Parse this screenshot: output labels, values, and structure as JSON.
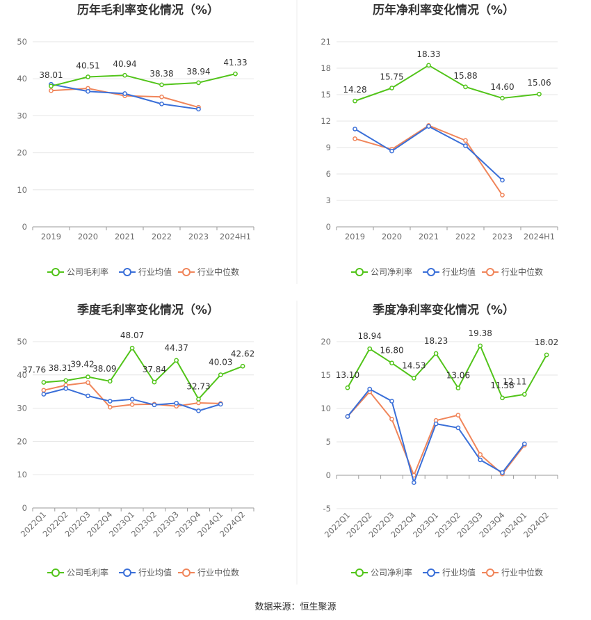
{
  "source": "数据来源：恒生聚源",
  "legend_colors": {
    "company": "#52c41a",
    "avg": "#3a6fd8",
    "median": "#f0855a"
  },
  "chart_data": [
    {
      "type": "line",
      "title": "历年毛利率变化情况（%）",
      "categories": [
        "2019",
        "2020",
        "2021",
        "2022",
        "2023",
        "2024H1"
      ],
      "ylim": [
        0,
        50
      ],
      "yticks": [
        0,
        10,
        20,
        30,
        40,
        50
      ],
      "grid": true,
      "legend": "bottom",
      "series": [
        {
          "name": "公司毛利率",
          "color": "#52c41a",
          "values": [
            38.01,
            40.51,
            40.94,
            38.38,
            38.94,
            41.33
          ],
          "labels": [
            "38.01",
            "40.51",
            "40.94",
            "38.38",
            "38.94",
            "41.33"
          ]
        },
        {
          "name": "行业均值",
          "color": "#3a6fd8",
          "values": [
            38.5,
            36.6,
            36.0,
            33.2,
            31.8,
            null
          ]
        },
        {
          "name": "行业中位数",
          "color": "#f0855a",
          "values": [
            36.8,
            37.4,
            35.4,
            35.1,
            32.3,
            null
          ]
        }
      ]
    },
    {
      "type": "line",
      "title": "历年净利率变化情况（%）",
      "categories": [
        "2019",
        "2020",
        "2021",
        "2022",
        "2023",
        "2024H1"
      ],
      "ylim": [
        0,
        21
      ],
      "yticks": [
        0,
        3,
        6,
        9,
        12,
        15,
        18,
        21
      ],
      "grid": true,
      "legend": "bottom",
      "series": [
        {
          "name": "公司净利率",
          "color": "#52c41a",
          "values": [
            14.28,
            15.75,
            18.33,
            15.88,
            14.6,
            15.06
          ],
          "labels": [
            "14.28",
            "15.75",
            "18.33",
            "15.88",
            "14.60",
            "15.06"
          ]
        },
        {
          "name": "行业均值",
          "color": "#3a6fd8",
          "values": [
            11.1,
            8.6,
            11.4,
            9.2,
            5.3,
            null
          ]
        },
        {
          "name": "行业中位数",
          "color": "#f0855a",
          "values": [
            10.0,
            8.8,
            11.5,
            9.8,
            3.6,
            null
          ]
        }
      ]
    },
    {
      "type": "line",
      "title": "季度毛利率变化情况（%）",
      "categories": [
        "2022Q1",
        "2022Q2",
        "2022Q3",
        "2022Q4",
        "2023Q1",
        "2023Q2",
        "2023Q3",
        "2023Q4",
        "2024Q1",
        "2024Q2"
      ],
      "ylim": [
        0,
        50
      ],
      "yticks": [
        0,
        10,
        20,
        30,
        40,
        50
      ],
      "grid": true,
      "legend": "bottom",
      "series": [
        {
          "name": "公司毛利率",
          "color": "#52c41a",
          "values": [
            37.76,
            38.31,
            39.42,
            38.09,
            48.07,
            37.84,
            44.37,
            32.73,
            40.03,
            42.62
          ],
          "labels": [
            "37.76",
            "38.31",
            "39.42",
            "38.09",
            "48.07",
            "37.84",
            "44.37",
            "32.73",
            "40.03",
            "42.62"
          ]
        },
        {
          "name": "行业均值",
          "color": "#3a6fd8",
          "values": [
            34.2,
            35.9,
            33.7,
            32.1,
            32.7,
            31.0,
            31.5,
            29.2,
            31.2,
            null
          ]
        },
        {
          "name": "行业中位数",
          "color": "#f0855a",
          "values": [
            35.4,
            36.9,
            37.7,
            30.3,
            31.1,
            31.2,
            30.6,
            31.6,
            31.4,
            null
          ]
        }
      ]
    },
    {
      "type": "line",
      "title": "季度净利率变化情况（%）",
      "categories": [
        "2022Q1",
        "2022Q2",
        "2022Q3",
        "2022Q4",
        "2023Q1",
        "2023Q2",
        "2023Q3",
        "2023Q4",
        "2024Q1",
        "2024Q2"
      ],
      "ylim": [
        -5,
        20
      ],
      "yticks": [
        -5,
        0,
        5,
        10,
        15,
        20
      ],
      "grid": true,
      "legend": "bottom",
      "series": [
        {
          "name": "公司净利率",
          "color": "#52c41a",
          "values": [
            13.1,
            18.94,
            16.8,
            14.53,
            18.23,
            13.06,
            19.38,
            11.58,
            12.11,
            18.02
          ],
          "labels": [
            "13.10",
            "18.94",
            "16.80",
            "14.53",
            "18.23",
            "13.06",
            "19.38",
            "11.58",
            "12.11",
            "18.02"
          ]
        },
        {
          "name": "行业均值",
          "color": "#3a6fd8",
          "values": [
            8.8,
            12.9,
            11.1,
            -1.1,
            7.7,
            7.1,
            2.3,
            0.4,
            4.7,
            null
          ]
        },
        {
          "name": "行业中位数",
          "color": "#f0855a",
          "values": [
            8.8,
            12.5,
            8.4,
            0.0,
            8.2,
            9.0,
            3.1,
            0.2,
            4.5,
            null
          ]
        }
      ]
    }
  ]
}
